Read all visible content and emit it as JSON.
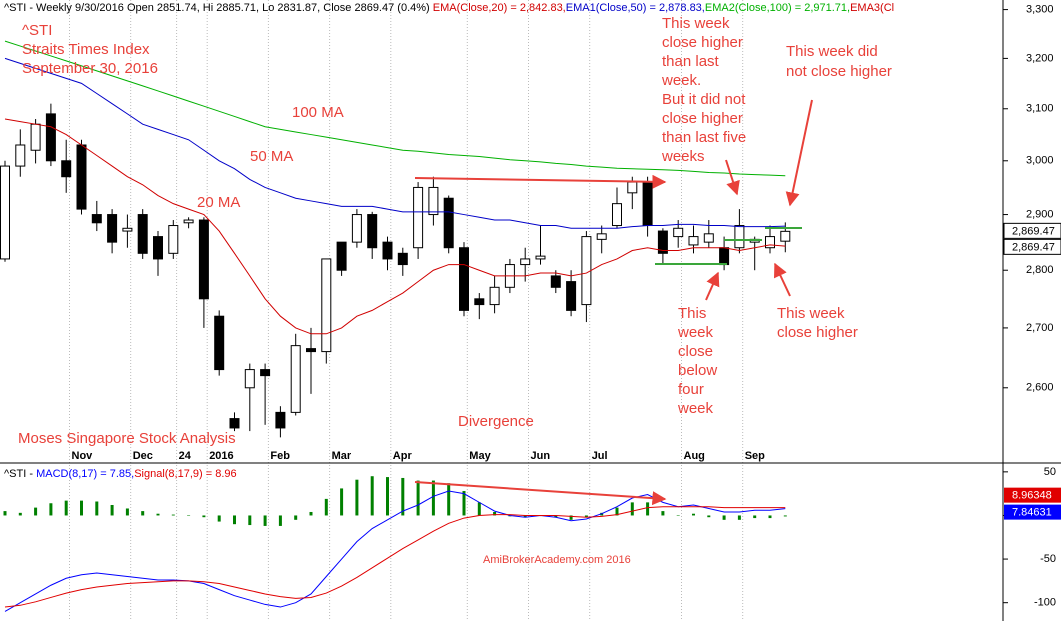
{
  "chart_data": [
    {
      "type": "candlestick",
      "title": "^STI - Weekly 9/30/2016 Open 2851.74, Hi 2885.71, Lo 2831.87, Close 2869.47 (0.4%) ",
      "header_tail": "EMA3(Cl",
      "categories": [
        null,
        null,
        null,
        null,
        null,
        "Nov",
        null,
        null,
        null,
        "Dec",
        null,
        null,
        "24",
        null,
        "2016",
        null,
        null,
        null,
        "Feb",
        null,
        null,
        null,
        "Mar",
        null,
        null,
        null,
        "Apr",
        null,
        null,
        null,
        null,
        "May",
        null,
        null,
        null,
        "Jun",
        null,
        null,
        null,
        "Jul",
        null,
        null,
        null,
        null,
        null,
        "Aug",
        null,
        null,
        null,
        "Sep",
        null,
        null
      ],
      "open": [
        2820,
        2990,
        3020,
        3090,
        3000,
        3030,
        2900,
        2900,
        2870,
        2900,
        2860,
        2830,
        2885,
        2890,
        2720,
        2550,
        2600,
        2630,
        2560,
        2560,
        2665,
        2660,
        2850,
        2850,
        2900,
        2850,
        2830,
        2840,
        2900,
        2930,
        2840,
        2750,
        2740,
        2770,
        2810,
        2820,
        2790,
        2780,
        2740,
        2855,
        2880,
        2940,
        2960,
        2870,
        2860,
        2845,
        2850,
        2840,
        2840,
        2850,
        2840,
        2851.74
      ],
      "high": [
        3000,
        3060,
        3080,
        3110,
        3040,
        3040,
        2925,
        2910,
        2900,
        2910,
        2870,
        2890,
        2895,
        2895,
        2730,
        2560,
        2640,
        2640,
        2570,
        2690,
        2700,
        2820,
        2850,
        2910,
        2905,
        2860,
        2840,
        2960,
        2970,
        2935,
        2850,
        2760,
        2790,
        2820,
        2840,
        2880,
        2800,
        2800,
        2870,
        2880,
        2950,
        2970,
        2970,
        2875,
        2890,
        2880,
        2890,
        2860,
        2910,
        2860,
        2880,
        2885.71
      ],
      "low": [
        2815,
        2970,
        2995,
        2990,
        2940,
        2900,
        2870,
        2830,
        2840,
        2820,
        2790,
        2820,
        2875,
        2700,
        2620,
        2530,
        2530,
        2540,
        2520,
        2555,
        2590,
        2640,
        2790,
        2840,
        2820,
        2800,
        2790,
        2820,
        2880,
        2830,
        2720,
        2715,
        2725,
        2760,
        2780,
        2810,
        2760,
        2720,
        2710,
        2830,
        2875,
        2910,
        2860,
        2810,
        2840,
        2830,
        2840,
        2800,
        2830,
        2800,
        2830,
        2831.87
      ],
      "close": [
        2990,
        3030,
        3070,
        3000,
        2970,
        2910,
        2885,
        2850,
        2875,
        2830,
        2820,
        2880,
        2890,
        2750,
        2630,
        2535,
        2630,
        2620,
        2535,
        2670,
        2660,
        2820,
        2800,
        2900,
        2840,
        2820,
        2810,
        2950,
        2950,
        2840,
        2730,
        2740,
        2770,
        2810,
        2820,
        2825,
        2770,
        2730,
        2860,
        2865,
        2920,
        2960,
        2880,
        2830,
        2875,
        2860,
        2865,
        2810,
        2880,
        2855,
        2860,
        2869.47
      ],
      "series": [
        {
          "name": "EMA(Close,20) = 2,842.83,",
          "color": "#d00000",
          "values": [
            3080,
            3075,
            3070,
            3065,
            3050,
            3030,
            3010,
            2990,
            2970,
            2955,
            2935,
            2920,
            2910,
            2900,
            2870,
            2830,
            2790,
            2750,
            2720,
            2700,
            2690,
            2690,
            2700,
            2720,
            2730,
            2745,
            2760,
            2780,
            2800,
            2810,
            2810,
            2800,
            2790,
            2790,
            2790,
            2795,
            2795,
            2790,
            2795,
            2810,
            2820,
            2835,
            2840,
            2835,
            2835,
            2840,
            2840,
            2840,
            2835,
            2840,
            2845,
            2842.83
          ]
        },
        {
          "name": "EMA1(Close,50) = 2,878.83,",
          "color": "#0000c8",
          "values": [
            3200,
            3190,
            3180,
            3170,
            3160,
            3150,
            3130,
            3110,
            3090,
            3070,
            3060,
            3050,
            3040,
            3020,
            3000,
            2985,
            2965,
            2950,
            2940,
            2930,
            2925,
            2920,
            2915,
            2915,
            2915,
            2910,
            2905,
            2905,
            2905,
            2905,
            2900,
            2895,
            2890,
            2890,
            2885,
            2880,
            2880,
            2875,
            2875,
            2875,
            2875,
            2878,
            2880,
            2880,
            2882,
            2882,
            2880,
            2880,
            2878,
            2878,
            2878,
            2878.83
          ]
        },
        {
          "name": "EMA2(Close,100) = 2,971.71,",
          "color": "#00b000",
          "values": [
            3235,
            3225,
            3215,
            3205,
            3195,
            3185,
            3175,
            3165,
            3155,
            3145,
            3135,
            3125,
            3115,
            3105,
            3095,
            3085,
            3075,
            3065,
            3060,
            3055,
            3050,
            3045,
            3040,
            3035,
            3030,
            3025,
            3020,
            3018,
            3015,
            3012,
            3010,
            3008,
            3005,
            3002,
            3000,
            2998,
            2995,
            2993,
            2990,
            2988,
            2986,
            2985,
            2984,
            2983,
            2982,
            2980,
            2978,
            2977,
            2975,
            2974,
            2973,
            2971.71
          ]
        }
      ],
      "last_price": {
        "value": 2869.47,
        "label": "2,869.47"
      },
      "log_scale": true,
      "ylim": [
        2500,
        3320
      ],
      "yticks": [
        {
          "value": 2600,
          "label": "2,600"
        },
        {
          "value": 2700,
          "label": "2,700"
        },
        {
          "value": 2800,
          "label": "2,800"
        },
        {
          "value": 2900,
          "label": "2,900"
        },
        {
          "value": 3000,
          "label": "3,000"
        },
        {
          "value": 3100,
          "label": "3,100"
        },
        {
          "value": 3200,
          "label": "3,200"
        },
        {
          "value": 3300,
          "label": "3,300"
        }
      ],
      "annotations": [
        [
          "^STI",
          "Straits Times Index",
          "September 30, 2016"
        ],
        [
          "100 MA"
        ],
        [
          "50 MA"
        ],
        [
          "20 MA"
        ],
        [
          "This week",
          "close higher",
          "than last",
          "week.",
          "But it did not",
          "close higher",
          "than last five",
          "weeks"
        ],
        [
          "This week did",
          "not close higher"
        ],
        [
          "This",
          "week",
          "close",
          "below",
          "four",
          "week"
        ],
        [
          "This week",
          "close higher"
        ],
        [
          "Divergence"
        ],
        [
          "Moses Singapore Stock Analysis"
        ]
      ],
      "annotation_color": "#e8413a"
    },
    {
      "type": "macd",
      "title": "^STI - ",
      "series": [
        {
          "name": "MACD(8,17) = 7.85,",
          "color": "#0000ff",
          "last": 7.84631,
          "values": [
            -110,
            -100,
            -90,
            -80,
            -72,
            -68,
            -66,
            -68,
            -70,
            -72,
            -74,
            -74,
            -75,
            -78,
            -85,
            -92,
            -97,
            -102,
            -105,
            -100,
            -90,
            -70,
            -50,
            -30,
            -15,
            -5,
            5,
            12,
            22,
            28,
            25,
            15,
            5,
            0,
            -2,
            0,
            -2,
            -6,
            -4,
            2,
            10,
            20,
            24,
            15,
            10,
            12,
            8,
            4,
            4,
            6,
            6,
            7.85
          ]
        },
        {
          "name": "Signal(8,17,9) = 8.96",
          "color": "#e00000",
          "last": 8.96348,
          "values": [
            -105,
            -103,
            -99,
            -94,
            -89,
            -85,
            -82,
            -80,
            -78,
            -77,
            -76,
            -75,
            -75,
            -76,
            -78,
            -82,
            -86,
            -90,
            -93,
            -95,
            -94,
            -89,
            -81,
            -71,
            -60,
            -49,
            -38,
            -28,
            -18,
            -9,
            -3,
            0,
            1,
            1,
            0,
            0,
            0,
            -1,
            -2,
            -1,
            1,
            5,
            9,
            10,
            10,
            10,
            10,
            9,
            9,
            9,
            9,
            8.96
          ]
        },
        {
          "style": "bar",
          "color": "#008000",
          "values": [
            5,
            3,
            9,
            14,
            17,
            17,
            16,
            12,
            8,
            5,
            2,
            1,
            0,
            -2,
            -7,
            -10,
            -11,
            -12,
            -12,
            -5,
            4,
            19,
            31,
            41,
            45,
            44,
            43,
            40,
            40,
            37,
            28,
            15,
            4,
            -1,
            -2,
            0,
            -2,
            -5,
            -2,
            3,
            9,
            15,
            15,
            5,
            0,
            2,
            -2,
            -5,
            -5,
            -3,
            -3,
            -1.11
          ]
        }
      ],
      "ylim": [
        -121,
        59
      ],
      "yticks": [
        50,
        0,
        -50,
        -100
      ],
      "watermark": "AmiBrokerAcademy.com  2016",
      "annotation_color": "#e8413a"
    }
  ]
}
